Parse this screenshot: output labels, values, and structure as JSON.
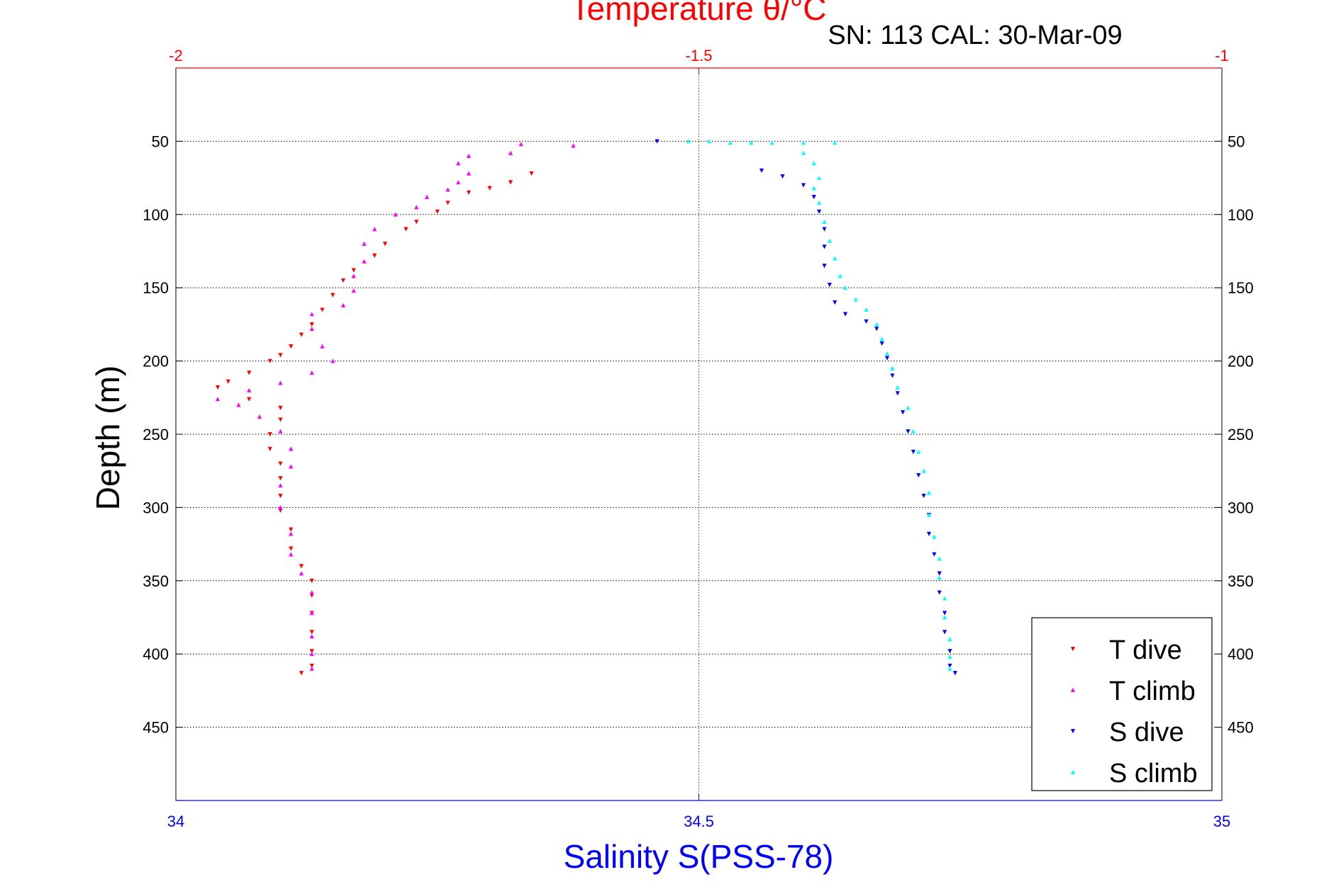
{
  "chart_data": {
    "type": "scatter",
    "title": "Temperature θ/°C",
    "subtitle": "SN: 113  CAL: 30-Mar-09",
    "xlabel": "Salinity S(PSS-78)",
    "ylabel": "Depth (m)",
    "x_bottom": {
      "range": [
        34,
        35
      ],
      "ticks": [
        "34",
        "34.5",
        "35"
      ],
      "color": "#0000ff"
    },
    "x_top": {
      "range": [
        -2,
        -1
      ],
      "ticks": [
        "-2",
        "-1.5",
        "-1"
      ],
      "color": "#ff0000"
    },
    "y": {
      "range": [
        500,
        0
      ],
      "reversed": true,
      "ticks": [
        "50",
        "100",
        "150",
        "200",
        "250",
        "300",
        "350",
        "400",
        "450"
      ]
    },
    "grid": true,
    "legend_position": "bottom-right",
    "series": [
      {
        "name": "T dive",
        "axis": "top",
        "color": "#ff0000",
        "marker": "triangle-down",
        "points": [
          [
            -1.66,
            72
          ],
          [
            -1.68,
            78
          ],
          [
            -1.7,
            82
          ],
          [
            -1.72,
            85
          ],
          [
            -1.74,
            92
          ],
          [
            -1.75,
            98
          ],
          [
            -1.77,
            105
          ],
          [
            -1.78,
            110
          ],
          [
            -1.8,
            120
          ],
          [
            -1.81,
            128
          ],
          [
            -1.83,
            138
          ],
          [
            -1.84,
            145
          ],
          [
            -1.85,
            155
          ],
          [
            -1.86,
            165
          ],
          [
            -1.87,
            175
          ],
          [
            -1.88,
            182
          ],
          [
            -1.89,
            190
          ],
          [
            -1.9,
            196
          ],
          [
            -1.91,
            200
          ],
          [
            -1.93,
            208
          ],
          [
            -1.95,
            214
          ],
          [
            -1.96,
            218
          ],
          [
            -1.93,
            226
          ],
          [
            -1.9,
            232
          ],
          [
            -1.9,
            240
          ],
          [
            -1.91,
            250
          ],
          [
            -1.91,
            260
          ],
          [
            -1.9,
            270
          ],
          [
            -1.9,
            280
          ],
          [
            -1.9,
            292
          ],
          [
            -1.9,
            302
          ],
          [
            -1.89,
            315
          ],
          [
            -1.89,
            328
          ],
          [
            -1.88,
            340
          ],
          [
            -1.87,
            350
          ],
          [
            -1.87,
            360
          ],
          [
            -1.87,
            372
          ],
          [
            -1.87,
            385
          ],
          [
            -1.87,
            398
          ],
          [
            -1.87,
            408
          ],
          [
            -1.88,
            413
          ]
        ]
      },
      {
        "name": "T climb",
        "axis": "top",
        "color": "#ff00ff",
        "marker": "triangle-up",
        "points": [
          [
            -1.62,
            53
          ],
          [
            -1.67,
            52
          ],
          [
            -1.68,
            58
          ],
          [
            -1.72,
            60
          ],
          [
            -1.73,
            65
          ],
          [
            -1.72,
            72
          ],
          [
            -1.73,
            78
          ],
          [
            -1.74,
            83
          ],
          [
            -1.76,
            88
          ],
          [
            -1.77,
            95
          ],
          [
            -1.79,
            100
          ],
          [
            -1.81,
            110
          ],
          [
            -1.82,
            120
          ],
          [
            -1.82,
            132
          ],
          [
            -1.83,
            142
          ],
          [
            -1.83,
            152
          ],
          [
            -1.84,
            162
          ],
          [
            -1.87,
            168
          ],
          [
            -1.87,
            178
          ],
          [
            -1.86,
            190
          ],
          [
            -1.85,
            200
          ],
          [
            -1.87,
            208
          ],
          [
            -1.9,
            215
          ],
          [
            -1.93,
            220
          ],
          [
            -1.96,
            226
          ],
          [
            -1.94,
            230
          ],
          [
            -1.92,
            238
          ],
          [
            -1.9,
            248
          ],
          [
            -1.89,
            260
          ],
          [
            -1.89,
            272
          ],
          [
            -1.9,
            285
          ],
          [
            -1.9,
            300
          ],
          [
            -1.89,
            318
          ],
          [
            -1.89,
            332
          ],
          [
            -1.88,
            345
          ],
          [
            -1.87,
            358
          ],
          [
            -1.87,
            372
          ],
          [
            -1.87,
            388
          ],
          [
            -1.87,
            400
          ],
          [
            -1.87,
            410
          ]
        ]
      },
      {
        "name": "S dive",
        "axis": "bottom",
        "color": "#0000ff",
        "marker": "triangle-down",
        "points": [
          [
            34.46,
            50
          ],
          [
            34.56,
            70
          ],
          [
            34.58,
            74
          ],
          [
            34.6,
            80
          ],
          [
            34.61,
            88
          ],
          [
            34.615,
            98
          ],
          [
            34.62,
            110
          ],
          [
            34.62,
            122
          ],
          [
            34.62,
            135
          ],
          [
            34.625,
            148
          ],
          [
            34.63,
            160
          ],
          [
            34.64,
            168
          ],
          [
            34.66,
            173
          ],
          [
            34.67,
            178
          ],
          [
            34.675,
            188
          ],
          [
            34.68,
            198
          ],
          [
            34.685,
            210
          ],
          [
            34.69,
            222
          ],
          [
            34.695,
            235
          ],
          [
            34.7,
            248
          ],
          [
            34.705,
            262
          ],
          [
            34.71,
            278
          ],
          [
            34.715,
            292
          ],
          [
            34.72,
            305
          ],
          [
            34.72,
            318
          ],
          [
            34.725,
            332
          ],
          [
            34.73,
            345
          ],
          [
            34.73,
            358
          ],
          [
            34.735,
            372
          ],
          [
            34.735,
            385
          ],
          [
            34.74,
            398
          ],
          [
            34.74,
            408
          ],
          [
            34.745,
            413
          ]
        ]
      },
      {
        "name": "S climb",
        "axis": "bottom",
        "color": "#00ffff",
        "marker": "triangle-up",
        "points": [
          [
            34.49,
            50
          ],
          [
            34.51,
            50
          ],
          [
            34.53,
            51
          ],
          [
            34.55,
            51
          ],
          [
            34.57,
            51
          ],
          [
            34.6,
            51
          ],
          [
            34.63,
            51
          ],
          [
            34.6,
            58
          ],
          [
            34.61,
            65
          ],
          [
            34.615,
            75
          ],
          [
            34.61,
            82
          ],
          [
            34.615,
            92
          ],
          [
            34.62,
            105
          ],
          [
            34.625,
            118
          ],
          [
            34.63,
            130
          ],
          [
            34.635,
            142
          ],
          [
            34.64,
            150
          ],
          [
            34.65,
            158
          ],
          [
            34.66,
            165
          ],
          [
            34.67,
            175
          ],
          [
            34.675,
            185
          ],
          [
            34.68,
            195
          ],
          [
            34.685,
            205
          ],
          [
            34.69,
            218
          ],
          [
            34.7,
            232
          ],
          [
            34.705,
            248
          ],
          [
            34.71,
            262
          ],
          [
            34.715,
            275
          ],
          [
            34.72,
            290
          ],
          [
            34.72,
            305
          ],
          [
            34.725,
            320
          ],
          [
            34.73,
            335
          ],
          [
            34.73,
            348
          ],
          [
            34.735,
            362
          ],
          [
            34.735,
            375
          ],
          [
            34.74,
            390
          ],
          [
            34.74,
            402
          ],
          [
            34.74,
            410
          ]
        ]
      }
    ]
  }
}
